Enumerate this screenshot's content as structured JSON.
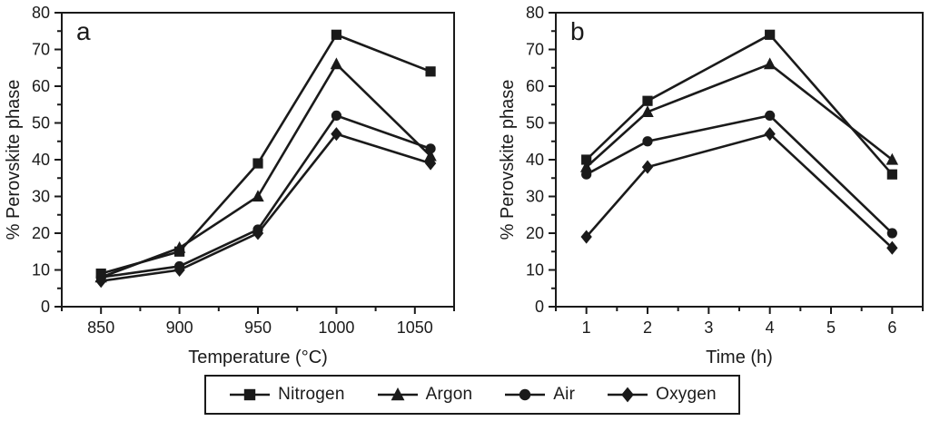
{
  "figure": {
    "background": "#ffffff",
    "ink_color": "#1a1a1a"
  },
  "chart_data": [
    {
      "type": "line",
      "panel_label": "a",
      "title": "",
      "xlabel": "Temperature (°C)",
      "ylabel": "% Perovskite phase",
      "x": [
        850,
        900,
        950,
        1000,
        1060
      ],
      "xticks": [
        850,
        900,
        950,
        1000,
        1050
      ],
      "xminor_step": 25,
      "xlim": [
        825,
        1075
      ],
      "yticks": [
        0,
        10,
        20,
        30,
        40,
        50,
        60,
        70,
        80
      ],
      "yminor_step": 5,
      "ylim": [
        0,
        80
      ],
      "grid": "off",
      "series": [
        {
          "name": "Nitrogen",
          "marker": "square",
          "values": [
            9,
            15,
            39,
            74,
            64
          ]
        },
        {
          "name": "Argon",
          "marker": "triangle",
          "values": [
            8,
            16,
            30,
            66,
            41
          ]
        },
        {
          "name": "Air",
          "marker": "circle",
          "values": [
            8,
            11,
            21,
            52,
            43
          ]
        },
        {
          "name": "Oxygen",
          "marker": "diamond",
          "values": [
            7,
            10,
            20,
            47,
            39
          ]
        }
      ]
    },
    {
      "type": "line",
      "panel_label": "b",
      "title": "",
      "xlabel": "Time (h)",
      "ylabel": "% Perovskite phase",
      "x": [
        1,
        2,
        4,
        6
      ],
      "xticks": [
        1,
        2,
        3,
        4,
        5,
        6
      ],
      "xminor_step": 0.5,
      "xlim": [
        0.5,
        6.5
      ],
      "yticks": [
        0,
        10,
        20,
        30,
        40,
        50,
        60,
        70,
        80
      ],
      "yminor_step": 5,
      "ylim": [
        0,
        80
      ],
      "grid": "off",
      "series": [
        {
          "name": "Nitrogen",
          "marker": "square",
          "values": [
            40,
            56,
            74,
            36
          ]
        },
        {
          "name": "Argon",
          "marker": "triangle",
          "values": [
            38,
            53,
            66,
            40
          ]
        },
        {
          "name": "Air",
          "marker": "circle",
          "values": [
            36,
            45,
            52,
            20
          ]
        },
        {
          "name": "Oxygen",
          "marker": "diamond",
          "values": [
            19,
            38,
            47,
            16
          ]
        }
      ]
    }
  ],
  "legend": {
    "position": "bottom-center",
    "entries": [
      {
        "label": "Nitrogen",
        "marker": "square"
      },
      {
        "label": "Argon",
        "marker": "triangle"
      },
      {
        "label": "Air",
        "marker": "circle"
      },
      {
        "label": "Oxygen",
        "marker": "diamond"
      }
    ]
  }
}
